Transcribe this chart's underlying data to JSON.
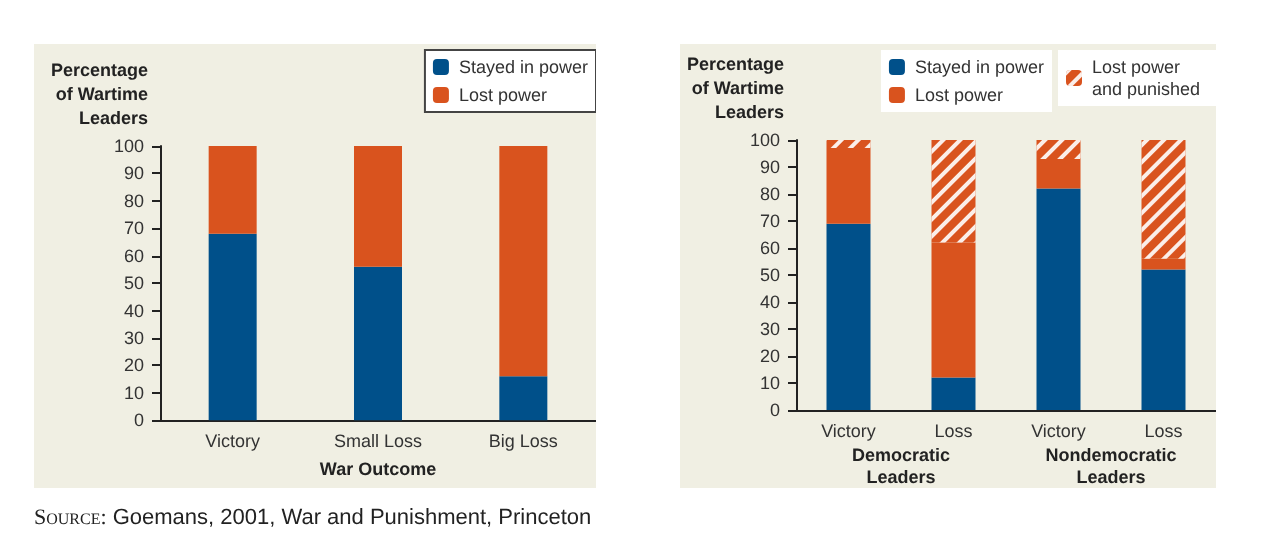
{
  "chart_data": [
    {
      "type": "bar",
      "stacked": true,
      "ylabel": "Percentage of Wartime Leaders",
      "xlabel": "War Outcome",
      "categories": [
        "Victory",
        "Small Loss",
        "Big Loss"
      ],
      "series": [
        {
          "name": "Stayed in power",
          "color": "#00508a",
          "values": [
            68,
            56,
            16
          ]
        },
        {
          "name": "Lost power",
          "color": "#d9531e",
          "values": [
            32,
            44,
            84
          ]
        }
      ],
      "ylim": [
        0,
        100
      ],
      "yticks": [
        0,
        10,
        20,
        30,
        40,
        50,
        60,
        70,
        80,
        90,
        100
      ],
      "grid": false,
      "legend": "top right",
      "annotations": [
        "Source: Goemans, 2001, War and Punishment, Princeton"
      ]
    },
    {
      "type": "bar",
      "stacked": true,
      "ylabel": "Percentage of Wartime Leaders",
      "categories": [
        "Victory",
        "Loss",
        "Victory",
        "Loss"
      ],
      "series": [
        {
          "name": "Stayed in power",
          "color": "#00508a",
          "values": [
            69,
            12,
            82,
            52
          ]
        },
        {
          "name": "Lost power",
          "color": "#d9531e",
          "values": [
            28,
            50,
            11,
            4
          ]
        },
        {
          "name": "Lost power and punished",
          "color": "#d9531e",
          "values": [
            3,
            38,
            7,
            44
          ]
        }
      ],
      "ylim": [
        0,
        100
      ],
      "yticks": [
        0,
        10,
        20,
        30,
        40,
        50,
        60,
        70,
        80,
        90,
        100
      ],
      "grid": false,
      "legend": "top right",
      "annotations": [
        "Democratic Leaders",
        "Nondemocratic Leaders"
      ]
    }
  ]
}
